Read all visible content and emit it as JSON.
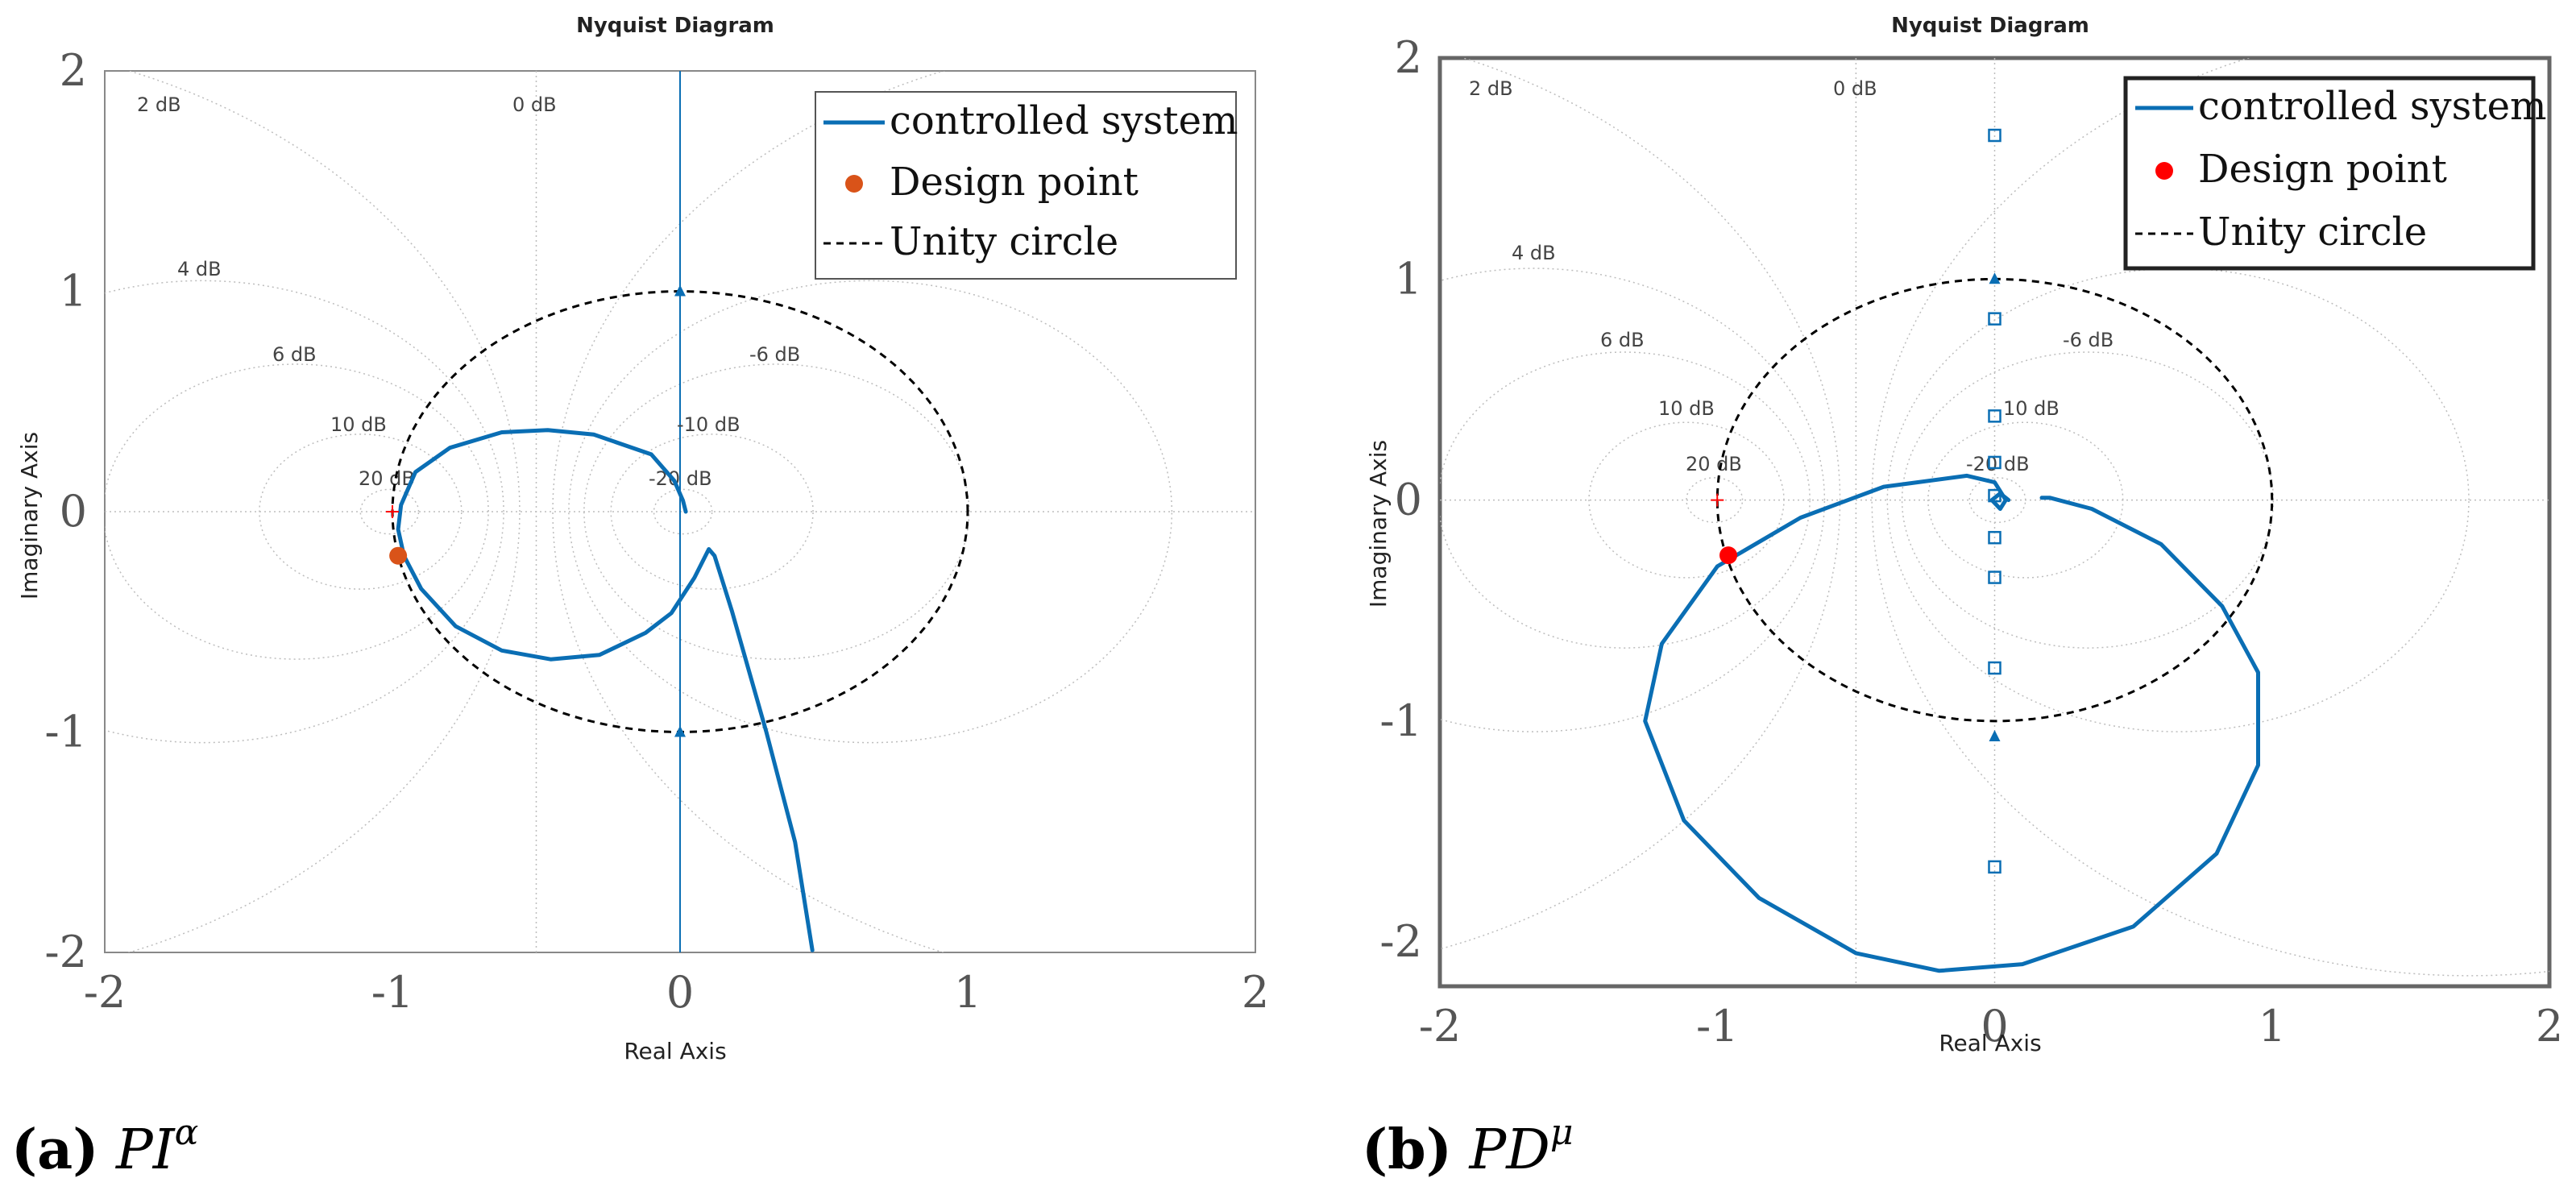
{
  "colors": {
    "curve": "#0a6eb4",
    "design_a": "#d95319",
    "design_b": "#ff0000",
    "grid": "#bdbdbd",
    "axis_text": "#555555",
    "marker": "#0a6eb4"
  },
  "captions": [
    {
      "label": "(a)",
      "var": "PI",
      "sup": "α"
    },
    {
      "label": "(b)",
      "var": "PD",
      "sup": "μ"
    }
  ],
  "chart_data": [
    {
      "type": "line",
      "title": "Nyquist Diagram",
      "xlabel": "Real Axis",
      "ylabel": "Imaginary Axis",
      "xlim": [
        -2,
        2
      ],
      "ylim": [
        -2,
        2
      ],
      "xticks": [
        "-2",
        "-1",
        "0",
        "1",
        "2"
      ],
      "yticks": [
        "-2",
        "-1",
        "0",
        "1",
        "2"
      ],
      "legend": {
        "placement": "top-right",
        "entries": [
          "controlled system",
          "Design point",
          "Unity circle"
        ]
      },
      "mgrid_labels": [
        "2 dB",
        "4 dB",
        "6 dB",
        "10 dB",
        "20 dB",
        "0 dB",
        "-6 dB",
        "-10 dB",
        "-20 dB"
      ],
      "design_point": [
        -0.98,
        -0.2
      ],
      "critical_point": [
        -1,
        0
      ],
      "imag_axis_markers": [
        1.0,
        -1.0
      ],
      "series": [
        {
          "name": "controlled system",
          "points": [
            [
              0.02,
              0.0
            ],
            [
              0.01,
              0.05
            ],
            [
              -0.02,
              0.14
            ],
            [
              -0.1,
              0.26
            ],
            [
              -0.3,
              0.35
            ],
            [
              -0.46,
              0.37
            ],
            [
              -0.62,
              0.36
            ],
            [
              -0.8,
              0.29
            ],
            [
              -0.92,
              0.18
            ],
            [
              -0.97,
              0.03
            ],
            [
              -0.98,
              -0.08
            ],
            [
              -0.96,
              -0.2
            ],
            [
              -0.9,
              -0.35
            ],
            [
              -0.78,
              -0.52
            ],
            [
              -0.62,
              -0.63
            ],
            [
              -0.45,
              -0.67
            ],
            [
              -0.28,
              -0.65
            ],
            [
              -0.12,
              -0.55
            ],
            [
              -0.03,
              -0.46
            ],
            [
              0.05,
              -0.3
            ],
            [
              0.1,
              -0.17
            ],
            [
              0.12,
              -0.2
            ],
            [
              0.18,
              -0.45
            ],
            [
              0.3,
              -1.0
            ],
            [
              0.4,
              -1.5
            ],
            [
              0.46,
              -1.99
            ]
          ]
        }
      ]
    },
    {
      "type": "line",
      "title": "Nyquist Diagram",
      "xlabel": "Real Axis",
      "ylabel": "Imaginary Axis",
      "xlim": [
        -2,
        2
      ],
      "ylim": [
        -2.2,
        2
      ],
      "xticks": [
        "-2",
        "-1",
        "0",
        "1",
        "2"
      ],
      "yticks": [
        "-2",
        "-1",
        "0",
        "1",
        "2"
      ],
      "legend": {
        "placement": "top-right",
        "entries": [
          "controlled system",
          "Design point",
          "Unity circle"
        ]
      },
      "mgrid_labels": [
        "2 dB",
        "4 dB",
        "6 dB",
        "10 dB",
        "20 dB",
        "0 dB",
        "-6 dB",
        "10 dB",
        "-20 dB"
      ],
      "design_point": [
        -0.96,
        -0.25
      ],
      "critical_point": [
        -1,
        0
      ],
      "imag_axis_markers": [
        1.0,
        -1.07
      ],
      "imag_axis_squares": [
        1.65,
        0.82,
        0.38,
        0.17,
        0.02,
        -0.17,
        -0.35,
        -0.76,
        -1.66
      ],
      "series": [
        {
          "name": "controlled system",
          "points": [
            [
              0.17,
              0.01
            ],
            [
              0.2,
              0.01
            ],
            [
              0.35,
              -0.04
            ],
            [
              0.6,
              -0.2
            ],
            [
              0.82,
              -0.48
            ],
            [
              0.95,
              -0.78
            ],
            [
              0.95,
              -1.2
            ],
            [
              0.8,
              -1.6
            ],
            [
              0.5,
              -1.93
            ],
            [
              0.1,
              -2.1
            ],
            [
              -0.2,
              -2.13
            ],
            [
              -0.5,
              -2.05
            ],
            [
              -0.85,
              -1.8
            ],
            [
              -1.12,
              -1.45
            ],
            [
              -1.26,
              -1.0
            ],
            [
              -1.2,
              -0.65
            ],
            [
              -1.0,
              -0.3
            ],
            [
              -0.7,
              -0.08
            ],
            [
              -0.4,
              0.06
            ],
            [
              -0.1,
              0.11
            ],
            [
              0.0,
              0.08
            ],
            [
              0.04,
              0.0
            ],
            [
              0.02,
              -0.04
            ],
            [
              -0.01,
              0.0
            ],
            [
              0.02,
              0.03
            ],
            [
              0.05,
              0.0
            ]
          ]
        }
      ]
    }
  ]
}
